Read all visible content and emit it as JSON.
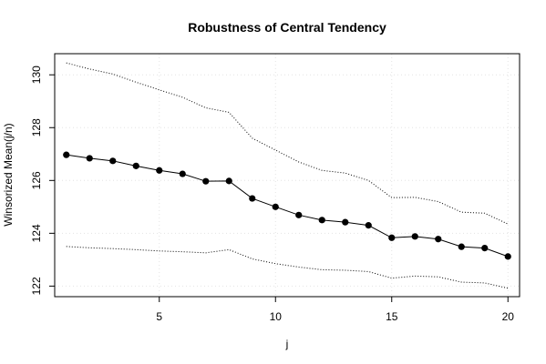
{
  "chart_data": {
    "type": "line",
    "title": "Robustness of Central Tendency",
    "xlabel": "j",
    "ylabel": "Winsorized Mean(j/n)",
    "xlim": [
      0.5,
      20.5
    ],
    "ylim": [
      121.6,
      130.8
    ],
    "xticks": [
      5,
      10,
      15,
      20
    ],
    "yticks": [
      122,
      124,
      126,
      128,
      130
    ],
    "grid": true,
    "series": [
      {
        "x": [
          1,
          2,
          3,
          4,
          5,
          6,
          7,
          8,
          9,
          10,
          11,
          12,
          13,
          14,
          15,
          16,
          17,
          18,
          19,
          20
        ],
        "values": [
          126.97,
          126.84,
          126.74,
          126.55,
          126.38,
          126.25,
          125.97,
          125.98,
          125.32,
          125.0,
          124.69,
          124.5,
          124.42,
          124.3,
          123.83,
          123.88,
          123.78,
          123.49,
          123.44,
          123.12
        ]
      },
      {
        "x": [
          1,
          2,
          3,
          4,
          5,
          6,
          7,
          8,
          9,
          10,
          11,
          12,
          13,
          14,
          15,
          16,
          17,
          18,
          19,
          20
        ],
        "values": [
          130.45,
          130.22,
          130.03,
          129.72,
          129.43,
          129.15,
          128.75,
          128.58,
          127.6,
          127.15,
          126.7,
          126.38,
          126.28,
          126.0,
          125.35,
          125.36,
          125.2,
          124.8,
          124.76,
          124.35
        ]
      },
      {
        "x": [
          1,
          2,
          3,
          4,
          5,
          6,
          7,
          8,
          9,
          10,
          11,
          12,
          13,
          14,
          15,
          16,
          17,
          18,
          19,
          20
        ],
        "values": [
          123.5,
          123.45,
          123.42,
          123.38,
          123.33,
          123.3,
          123.26,
          123.38,
          123.03,
          122.85,
          122.72,
          122.62,
          122.6,
          122.55,
          122.3,
          122.38,
          122.35,
          122.15,
          122.12,
          121.92
        ]
      }
    ]
  }
}
